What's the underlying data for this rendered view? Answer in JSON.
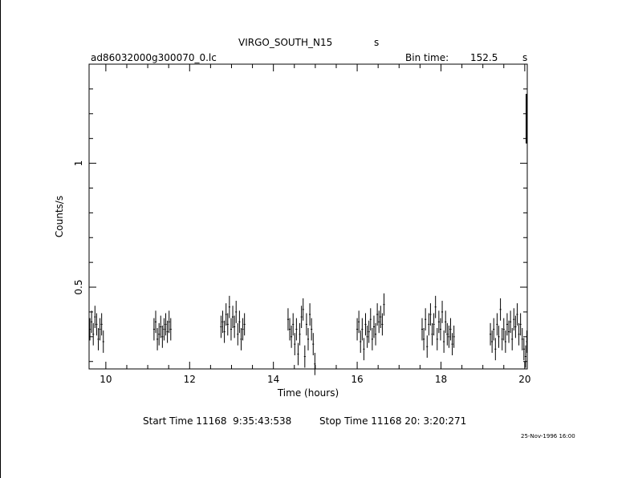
{
  "header": {
    "title": "VIRGO_SOUTH_N15",
    "title_unit": "s",
    "filename": "ad86032000g300070_0.lc",
    "bin_label": "Bin time:",
    "bin_value": "152.5",
    "bin_unit": "s"
  },
  "footer": {
    "start_time": "Start Time 11168  9:35:43:538",
    "stop_time": "Stop Time 11168 20: 3:20:271",
    "stamp": "25-Nov-1996 16:00"
  },
  "chart_data": {
    "type": "scatter",
    "title": "VIRGO_SOUTH_N15",
    "xlabel": "Time (hours)",
    "ylabel": "Counts/s",
    "xlim": [
      9.6,
      20.06
    ],
    "ylim": [
      0.17,
      1.4
    ],
    "x_ticks": [
      10,
      12,
      14,
      16,
      18,
      20
    ],
    "y_ticks": [
      0.5,
      1
    ],
    "y_tick_labels": [
      "0.5",
      "1"
    ],
    "grid": false,
    "series": [
      {
        "error_bar_y": 0.045,
        "error_bar_x": 0.02,
        "points": [
          [
            9.62,
            0.33
          ],
          [
            9.66,
            0.36
          ],
          [
            9.7,
            0.31
          ],
          [
            9.74,
            0.38
          ],
          [
            9.78,
            0.35
          ],
          [
            9.82,
            0.29
          ],
          [
            9.86,
            0.33
          ],
          [
            9.9,
            0.35
          ],
          [
            9.94,
            0.28
          ],
          [
            11.15,
            0.33
          ],
          [
            11.19,
            0.36
          ],
          [
            11.23,
            0.29
          ],
          [
            11.27,
            0.31
          ],
          [
            11.31,
            0.34
          ],
          [
            11.35,
            0.3
          ],
          [
            11.39,
            0.33
          ],
          [
            11.43,
            0.35
          ],
          [
            11.47,
            0.32
          ],
          [
            11.51,
            0.36
          ],
          [
            11.55,
            0.33
          ],
          [
            12.75,
            0.34
          ],
          [
            12.79,
            0.36
          ],
          [
            12.83,
            0.32
          ],
          [
            12.87,
            0.39
          ],
          [
            12.91,
            0.35
          ],
          [
            12.95,
            0.42
          ],
          [
            12.99,
            0.33
          ],
          [
            13.03,
            0.38
          ],
          [
            13.07,
            0.34
          ],
          [
            13.11,
            0.4
          ],
          [
            13.15,
            0.31
          ],
          [
            13.19,
            0.36
          ],
          [
            13.23,
            0.29
          ],
          [
            13.27,
            0.33
          ],
          [
            13.31,
            0.35
          ],
          [
            14.35,
            0.37
          ],
          [
            14.39,
            0.33
          ],
          [
            14.43,
            0.3
          ],
          [
            14.47,
            0.35
          ],
          [
            14.51,
            0.27
          ],
          [
            14.55,
            0.33
          ],
          [
            14.59,
            0.23
          ],
          [
            14.63,
            0.31
          ],
          [
            14.67,
            0.38
          ],
          [
            14.71,
            0.41
          ],
          [
            14.75,
            0.22
          ],
          [
            14.79,
            0.35
          ],
          [
            14.83,
            0.29
          ],
          [
            14.87,
            0.39
          ],
          [
            14.91,
            0.33
          ],
          [
            14.95,
            0.27
          ],
          [
            14.99,
            0.19
          ],
          [
            16.0,
            0.33
          ],
          [
            16.04,
            0.36
          ],
          [
            16.08,
            0.28
          ],
          [
            16.12,
            0.33
          ],
          [
            16.16,
            0.25
          ],
          [
            16.2,
            0.35
          ],
          [
            16.24,
            0.3
          ],
          [
            16.28,
            0.32
          ],
          [
            16.32,
            0.37
          ],
          [
            16.36,
            0.29
          ],
          [
            16.4,
            0.34
          ],
          [
            16.44,
            0.31
          ],
          [
            16.48,
            0.39
          ],
          [
            16.52,
            0.36
          ],
          [
            16.56,
            0.38
          ],
          [
            16.6,
            0.35
          ],
          [
            16.64,
            0.43
          ],
          [
            17.55,
            0.33
          ],
          [
            17.59,
            0.29
          ],
          [
            17.63,
            0.37
          ],
          [
            17.67,
            0.26
          ],
          [
            17.71,
            0.35
          ],
          [
            17.75,
            0.39
          ],
          [
            17.79,
            0.31
          ],
          [
            17.83,
            0.35
          ],
          [
            17.87,
            0.42
          ],
          [
            17.91,
            0.29
          ],
          [
            17.95,
            0.36
          ],
          [
            17.99,
            0.33
          ],
          [
            18.03,
            0.4
          ],
          [
            18.07,
            0.28
          ],
          [
            18.11,
            0.36
          ],
          [
            18.15,
            0.31
          ],
          [
            18.19,
            0.3
          ],
          [
            18.23,
            0.33
          ],
          [
            18.27,
            0.27
          ],
          [
            18.31,
            0.3
          ],
          [
            19.18,
            0.31
          ],
          [
            19.22,
            0.28
          ],
          [
            19.26,
            0.33
          ],
          [
            19.3,
            0.25
          ],
          [
            19.34,
            0.35
          ],
          [
            19.38,
            0.3
          ],
          [
            19.42,
            0.41
          ],
          [
            19.46,
            0.29
          ],
          [
            19.5,
            0.33
          ],
          [
            19.54,
            0.28
          ],
          [
            19.58,
            0.35
          ],
          [
            19.62,
            0.32
          ],
          [
            19.66,
            0.36
          ],
          [
            19.7,
            0.29
          ],
          [
            19.74,
            0.37
          ],
          [
            19.78,
            0.34
          ],
          [
            19.82,
            0.39
          ],
          [
            19.86,
            0.31
          ],
          [
            19.9,
            0.35
          ],
          [
            19.94,
            0.29
          ],
          [
            19.98,
            0.25
          ],
          [
            20.02,
            0.22
          ],
          [
            20.05,
            0.28
          ]
        ]
      }
    ],
    "edge_bar": {
      "x": 20.06,
      "y_low": 1.08,
      "y_high": 1.28
    }
  }
}
